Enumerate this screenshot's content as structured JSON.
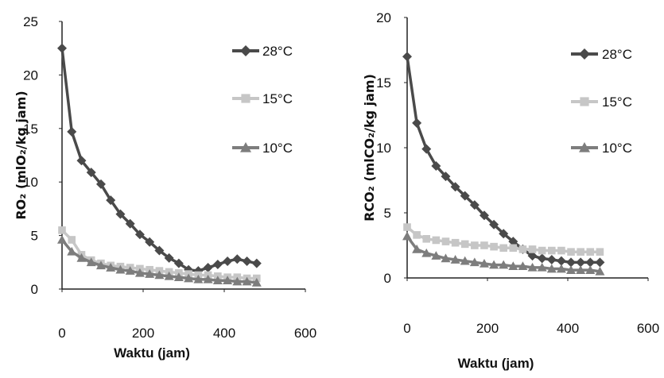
{
  "chart_data": [
    {
      "type": "line",
      "ylabel": "RO₂ (mlO₂/kg jam)",
      "xlabel": "Waktu (jam)",
      "xlim": [
        0,
        600
      ],
      "ylim": [
        0,
        25
      ],
      "xticks": [
        "0",
        "200",
        "400",
        "600"
      ],
      "yticks": [
        "0",
        "5",
        "10",
        "15",
        "20",
        "25"
      ],
      "legend_position": "right",
      "series": [
        {
          "name": "28°C",
          "color": "#4a4a4a",
          "marker": "diamond",
          "x": [
            0,
            24,
            48,
            72,
            96,
            120,
            144,
            168,
            192,
            216,
            240,
            264,
            288,
            312,
            336,
            360,
            384,
            408,
            432,
            456,
            480
          ],
          "y": [
            22.5,
            14.7,
            12.0,
            10.9,
            9.8,
            8.3,
            7.0,
            6.1,
            5.1,
            4.4,
            3.6,
            2.9,
            2.4,
            1.8,
            1.7,
            2.0,
            2.3,
            2.6,
            2.8,
            2.6,
            2.4
          ]
        },
        {
          "name": "15°C",
          "color": "#c6c6c6",
          "marker": "square",
          "x": [
            0,
            24,
            48,
            72,
            96,
            120,
            144,
            168,
            192,
            216,
            240,
            264,
            288,
            312,
            336,
            360,
            384,
            408,
            432,
            456,
            480
          ],
          "y": [
            5.5,
            4.6,
            3.2,
            2.7,
            2.4,
            2.2,
            2.1,
            2.0,
            1.9,
            1.8,
            1.7,
            1.6,
            1.5,
            1.4,
            1.3,
            1.3,
            1.2,
            1.1,
            1.1,
            1.0,
            1.0
          ]
        },
        {
          "name": "10°C",
          "color": "#7d7d7d",
          "marker": "triangle",
          "x": [
            0,
            24,
            48,
            72,
            96,
            120,
            144,
            168,
            192,
            216,
            240,
            264,
            288,
            312,
            336,
            360,
            384,
            408,
            432,
            456,
            480
          ],
          "y": [
            4.6,
            3.5,
            2.9,
            2.5,
            2.2,
            2.0,
            1.8,
            1.7,
            1.5,
            1.4,
            1.3,
            1.2,
            1.1,
            1.0,
            0.9,
            0.9,
            0.8,
            0.8,
            0.7,
            0.7,
            0.6
          ]
        }
      ]
    },
    {
      "type": "line",
      "ylabel": "RCO₂ (mlCO₂/kg jam)",
      "xlabel": "Waktu (jam)",
      "xlim": [
        0,
        600
      ],
      "ylim": [
        0,
        20
      ],
      "xticks": [
        "0",
        "200",
        "400",
        "600"
      ],
      "yticks": [
        "0",
        "5",
        "10",
        "15",
        "20"
      ],
      "legend_position": "right",
      "series": [
        {
          "name": "28°C",
          "color": "#4a4a4a",
          "marker": "diamond",
          "x": [
            0,
            24,
            48,
            72,
            96,
            120,
            144,
            168,
            192,
            216,
            240,
            264,
            288,
            312,
            336,
            360,
            384,
            408,
            432,
            456,
            480
          ],
          "y": [
            17.0,
            11.9,
            9.9,
            8.6,
            7.8,
            7.0,
            6.3,
            5.6,
            4.8,
            4.1,
            3.4,
            2.8,
            2.2,
            1.7,
            1.5,
            1.4,
            1.3,
            1.2,
            1.2,
            1.2,
            1.2
          ]
        },
        {
          "name": "15°C",
          "color": "#c6c6c6",
          "marker": "square",
          "x": [
            0,
            24,
            48,
            72,
            96,
            120,
            144,
            168,
            192,
            216,
            240,
            264,
            288,
            312,
            336,
            360,
            384,
            408,
            432,
            456,
            480
          ],
          "y": [
            3.9,
            3.3,
            3.0,
            2.9,
            2.8,
            2.7,
            2.6,
            2.5,
            2.5,
            2.4,
            2.3,
            2.3,
            2.2,
            2.2,
            2.1,
            2.1,
            2.1,
            2.0,
            2.0,
            2.0,
            2.0
          ]
        },
        {
          "name": "10°C",
          "color": "#7d7d7d",
          "marker": "triangle",
          "x": [
            0,
            24,
            48,
            72,
            96,
            120,
            144,
            168,
            192,
            216,
            240,
            264,
            288,
            312,
            336,
            360,
            384,
            408,
            432,
            456,
            480
          ],
          "y": [
            3.2,
            2.2,
            1.9,
            1.7,
            1.5,
            1.4,
            1.3,
            1.2,
            1.1,
            1.0,
            1.0,
            0.9,
            0.9,
            0.8,
            0.8,
            0.7,
            0.7,
            0.6,
            0.6,
            0.6,
            0.5
          ]
        }
      ]
    }
  ]
}
